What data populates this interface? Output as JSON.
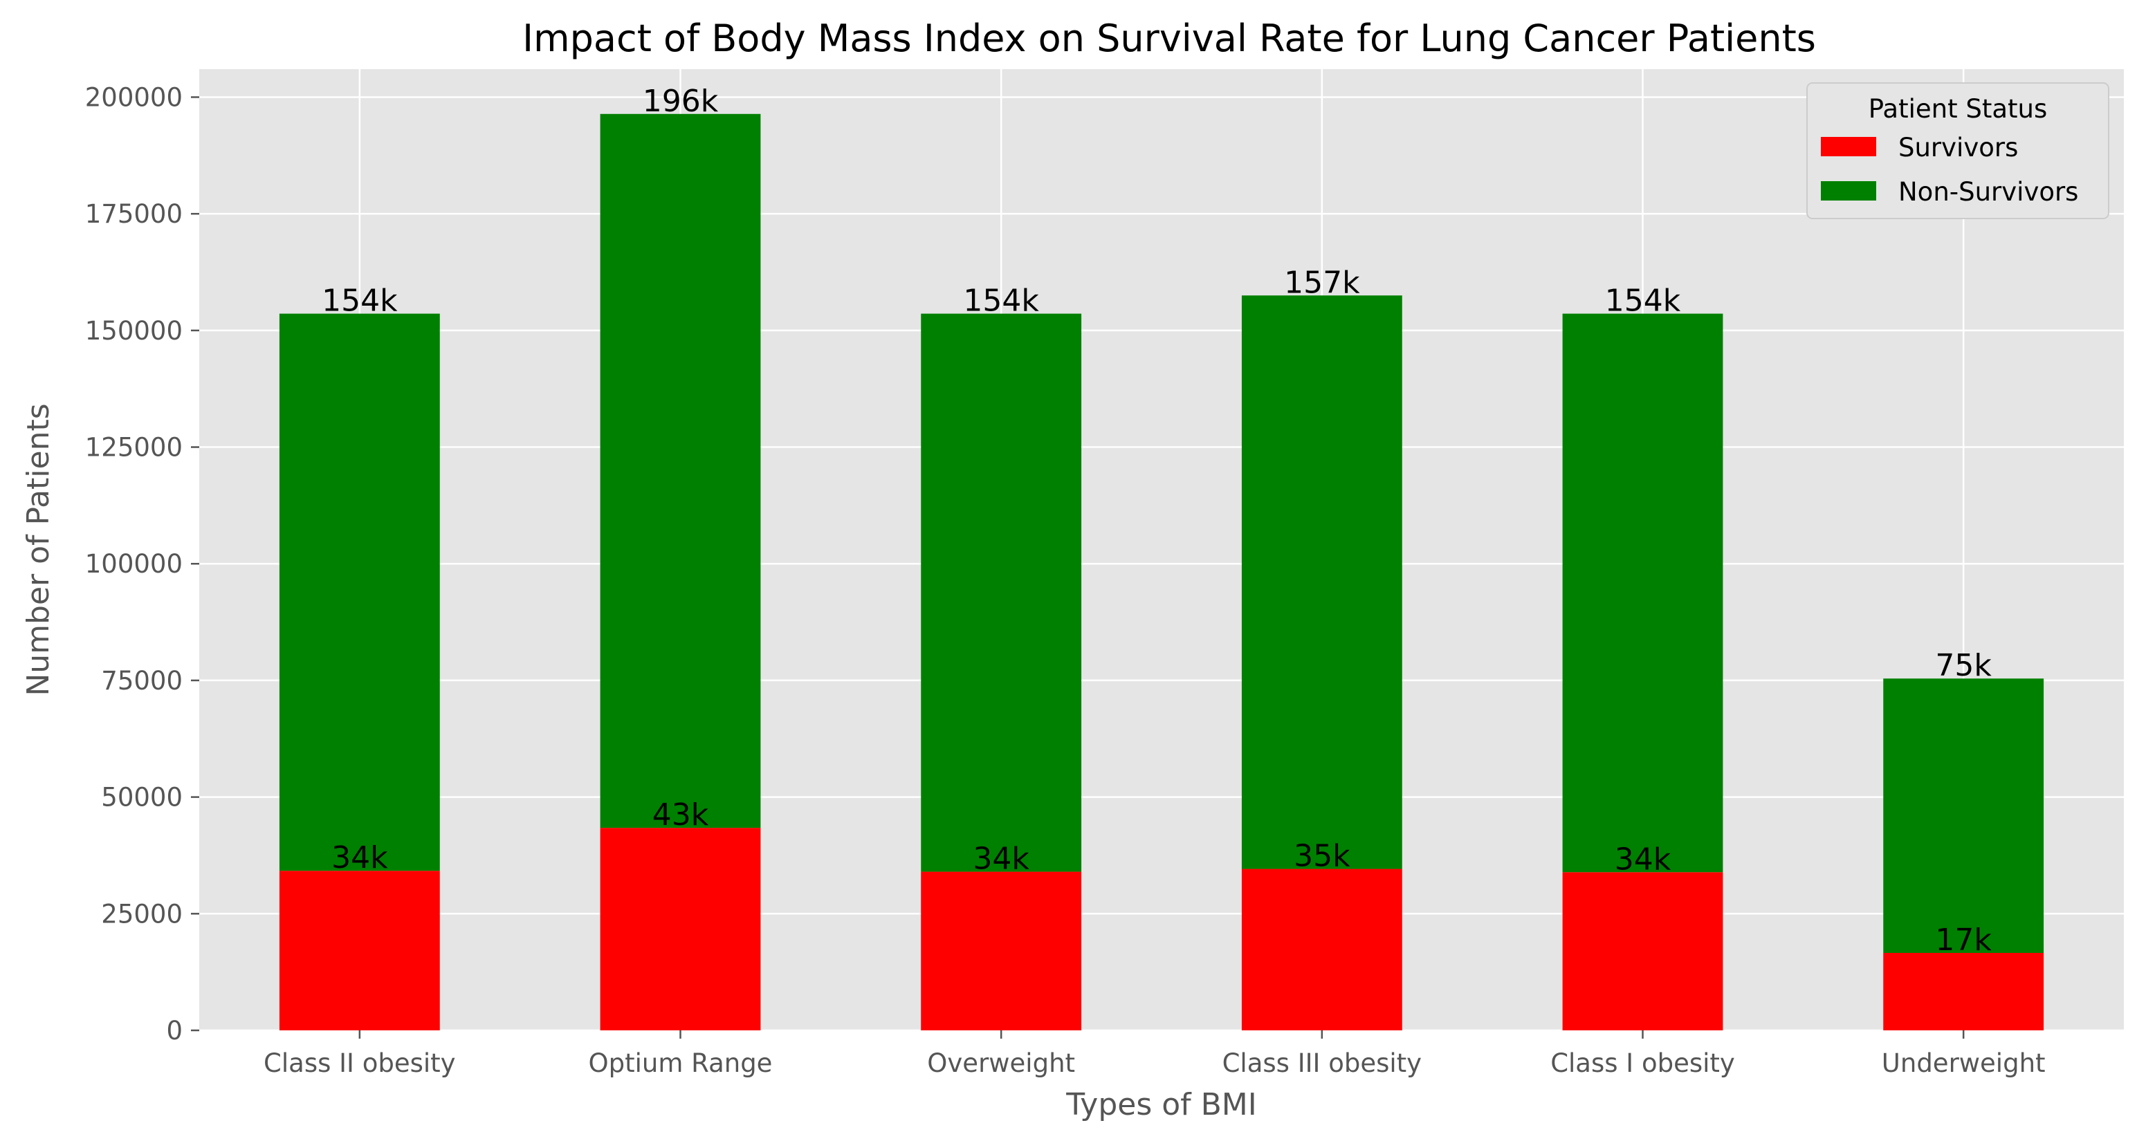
{
  "chart_data": {
    "type": "bar",
    "stacked": true,
    "title": "Impact of Body Mass Index on Survival Rate for Lung Cancer Patients",
    "xlabel": "Types of BMI",
    "ylabel": "Number of Patients",
    "categories": [
      "Class II obesity",
      "Optium Range",
      "Overweight",
      "Class III obesity",
      "Class I obesity",
      "Underweight"
    ],
    "series": [
      {
        "name": "Survivors",
        "color": "#ff0000",
        "values": [
          34200,
          43400,
          34000,
          34600,
          33900,
          16600
        ]
      },
      {
        "name": "Non-Survivors",
        "color": "#008000",
        "values": [
          119400,
          153000,
          119600,
          122900,
          119700,
          58800
        ]
      }
    ],
    "survivor_labels": [
      "34k",
      "43k",
      "34k",
      "35k",
      "34k",
      "17k"
    ],
    "total_labels": [
      "154k",
      "196k",
      "154k",
      "157k",
      "154k",
      "75k"
    ],
    "y_ticks": [
      0,
      25000,
      50000,
      75000,
      100000,
      125000,
      150000,
      175000,
      200000
    ],
    "ylim": [
      0,
      206000
    ],
    "grid": true,
    "legend": {
      "title": "Patient Status",
      "placement": "top-right"
    }
  }
}
